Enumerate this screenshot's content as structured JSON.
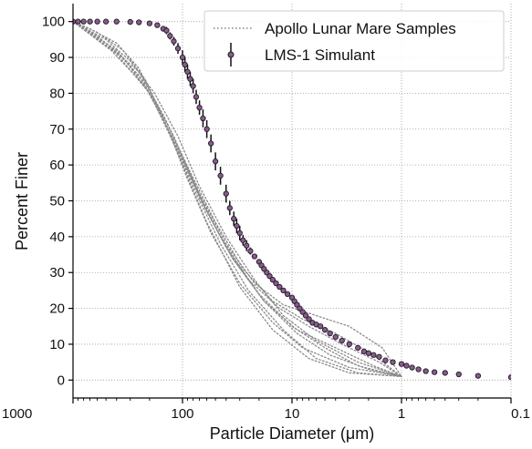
{
  "chart_data": {
    "type": "scatter",
    "xlabel": "Particle Diameter (μm)",
    "ylabel": "Percent Finer",
    "x_scale": "log",
    "x_reversed": true,
    "xlim": [
      1000,
      0.1
    ],
    "ylim": [
      -5,
      105
    ],
    "x_ticks": [
      1000,
      100,
      10,
      1,
      0.1
    ],
    "x_tick_labels": [
      "1000",
      "100",
      "10",
      "1",
      "0.1"
    ],
    "y_ticks": [
      0,
      10,
      20,
      30,
      40,
      50,
      60,
      70,
      80,
      90,
      100
    ],
    "y_tick_labels": [
      "0",
      "10",
      "20",
      "30",
      "40",
      "50",
      "60",
      "70",
      "80",
      "90",
      "100"
    ],
    "grid": true,
    "legend_position": "top-right",
    "legend": [
      {
        "label": "Apollo Lunar Mare Samples",
        "style": "dotted-line"
      },
      {
        "label": "LMS-1 Simulant",
        "style": "errorbar-marker"
      }
    ],
    "colors": {
      "apollo": "#8a8a8a",
      "simulant_fill": "#8b5a86",
      "simulant_edge": "#1b1b2b",
      "errorbar": "#111111",
      "grid": "#9a9a9a"
    },
    "series": [
      {
        "name": "LMS-1 Simulant",
        "kind": "points_with_errorbars",
        "points": [
          {
            "x": 1000,
            "y": 100
          },
          {
            "x": 900,
            "y": 100
          },
          {
            "x": 800,
            "y": 100
          },
          {
            "x": 700,
            "y": 100
          },
          {
            "x": 600,
            "y": 100
          },
          {
            "x": 500,
            "y": 100
          },
          {
            "x": 400,
            "y": 100
          },
          {
            "x": 300,
            "y": 99.9
          },
          {
            "x": 250,
            "y": 99.8
          },
          {
            "x": 200,
            "y": 99.5
          },
          {
            "x": 170,
            "y": 99
          },
          {
            "x": 150,
            "y": 98
          },
          {
            "x": 140,
            "y": 97.5,
            "err": 1
          },
          {
            "x": 130,
            "y": 96,
            "err": 1
          },
          {
            "x": 120,
            "y": 94.5,
            "err": 1.2
          },
          {
            "x": 110,
            "y": 92.5,
            "err": 1.5
          },
          {
            "x": 100,
            "y": 90,
            "err": 2
          },
          {
            "x": 95,
            "y": 88,
            "err": 2
          },
          {
            "x": 90,
            "y": 86,
            "err": 2
          },
          {
            "x": 85,
            "y": 84,
            "err": 2
          },
          {
            "x": 80,
            "y": 82,
            "err": 2
          },
          {
            "x": 75,
            "y": 79,
            "err": 2
          },
          {
            "x": 70,
            "y": 76,
            "err": 2
          },
          {
            "x": 65,
            "y": 73,
            "err": 2.5
          },
          {
            "x": 60,
            "y": 70,
            "err": 2.5
          },
          {
            "x": 55,
            "y": 66,
            "err": 2.5
          },
          {
            "x": 50,
            "y": 61,
            "err": 2.5
          },
          {
            "x": 45,
            "y": 57,
            "err": 2.5
          },
          {
            "x": 40,
            "y": 52,
            "err": 2.5
          },
          {
            "x": 37,
            "y": 48,
            "err": 2
          },
          {
            "x": 34,
            "y": 45,
            "err": 2
          },
          {
            "x": 32,
            "y": 43,
            "err": 2
          },
          {
            "x": 30,
            "y": 41,
            "err": 2
          },
          {
            "x": 28,
            "y": 39,
            "err": 1.5
          },
          {
            "x": 26,
            "y": 37.5,
            "err": 1.5
          },
          {
            "x": 24,
            "y": 36,
            "err": 1
          },
          {
            "x": 22,
            "y": 34.5
          },
          {
            "x": 20,
            "y": 33
          },
          {
            "x": 19,
            "y": 32
          },
          {
            "x": 18,
            "y": 31
          },
          {
            "x": 17,
            "y": 30
          },
          {
            "x": 16,
            "y": 29
          },
          {
            "x": 15,
            "y": 28
          },
          {
            "x": 14,
            "y": 27
          },
          {
            "x": 13,
            "y": 26
          },
          {
            "x": 12,
            "y": 25
          },
          {
            "x": 11,
            "y": 24
          },
          {
            "x": 10,
            "y": 23
          },
          {
            "x": 9.5,
            "y": 22
          },
          {
            "x": 9,
            "y": 21
          },
          {
            "x": 8.5,
            "y": 20
          },
          {
            "x": 8,
            "y": 19
          },
          {
            "x": 7.5,
            "y": 18
          },
          {
            "x": 7,
            "y": 17
          },
          {
            "x": 6.5,
            "y": 16
          },
          {
            "x": 6,
            "y": 15.5
          },
          {
            "x": 5.5,
            "y": 15
          },
          {
            "x": 5,
            "y": 14
          },
          {
            "x": 4.5,
            "y": 13
          },
          {
            "x": 4,
            "y": 12
          },
          {
            "x": 3.5,
            "y": 11
          },
          {
            "x": 3,
            "y": 10
          },
          {
            "x": 2.5,
            "y": 9
          },
          {
            "x": 2.2,
            "y": 8
          },
          {
            "x": 2,
            "y": 7.5
          },
          {
            "x": 1.8,
            "y": 7
          },
          {
            "x": 1.6,
            "y": 6.5
          },
          {
            "x": 1.4,
            "y": 5.5
          },
          {
            "x": 1.2,
            "y": 5
          },
          {
            "x": 1,
            "y": 4.5
          },
          {
            "x": 0.9,
            "y": 4
          },
          {
            "x": 0.8,
            "y": 3.5
          },
          {
            "x": 0.7,
            "y": 3
          },
          {
            "x": 0.6,
            "y": 2.5
          },
          {
            "x": 0.5,
            "y": 2.2
          },
          {
            "x": 0.4,
            "y": 2
          },
          {
            "x": 0.3,
            "y": 1.6
          },
          {
            "x": 0.2,
            "y": 1.2
          },
          {
            "x": 0.1,
            "y": 0.8
          }
        ]
      },
      {
        "name": "Apollo Lunar Mare Samples",
        "kind": "dotted_lines",
        "curves": [
          [
            [
              1000,
              100
            ],
            [
              700,
              98
            ],
            [
              400,
              94
            ],
            [
              250,
              87
            ],
            [
              160,
              75
            ],
            [
              100,
              60
            ],
            [
              60,
              44
            ],
            [
              30,
              26
            ],
            [
              15,
              14
            ],
            [
              7,
              6
            ],
            [
              3,
              2
            ],
            [
              1,
              1
            ]
          ],
          [
            [
              1000,
              100
            ],
            [
              600,
              97
            ],
            [
              350,
              92
            ],
            [
              220,
              84
            ],
            [
              140,
              71
            ],
            [
              90,
              56
            ],
            [
              55,
              41
            ],
            [
              30,
              27
            ],
            [
              15,
              16
            ],
            [
              8,
              9
            ],
            [
              3,
              3.5
            ],
            [
              1,
              1
            ]
          ],
          [
            [
              1000,
              100
            ],
            [
              600,
              96
            ],
            [
              350,
              90
            ],
            [
              200,
              80
            ],
            [
              120,
              66
            ],
            [
              75,
              52
            ],
            [
              45,
              38
            ],
            [
              25,
              25
            ],
            [
              12,
              14
            ],
            [
              6,
              6
            ],
            [
              2.5,
              2
            ],
            [
              1,
              1
            ]
          ],
          [
            [
              1000,
              100
            ],
            [
              500,
              95
            ],
            [
              300,
              89
            ],
            [
              180,
              80
            ],
            [
              110,
              68
            ],
            [
              70,
              54
            ],
            [
              40,
              40
            ],
            [
              22,
              28
            ],
            [
              12,
              18
            ],
            [
              6,
              11
            ],
            [
              2.5,
              5
            ],
            [
              1,
              1
            ]
          ],
          [
            [
              1000,
              100
            ],
            [
              500,
              94
            ],
            [
              250,
              86
            ],
            [
              150,
              74
            ],
            [
              95,
              61
            ],
            [
              60,
              47
            ],
            [
              35,
              34
            ],
            [
              18,
              22
            ],
            [
              9,
              14
            ],
            [
              4,
              9
            ],
            [
              1.8,
              4
            ],
            [
              1,
              1
            ]
          ],
          [
            [
              1000,
              100
            ],
            [
              450,
              93
            ],
            [
              250,
              85
            ],
            [
              140,
              72
            ],
            [
              85,
              58
            ],
            [
              50,
              44
            ],
            [
              28,
              31
            ],
            [
              15,
              22
            ],
            [
              8,
              17
            ],
            [
              4,
              13
            ],
            [
              1.8,
              7
            ],
            [
              1,
              1
            ]
          ],
          [
            [
              1000,
              100
            ],
            [
              450,
              92
            ],
            [
              220,
              82
            ],
            [
              130,
              69
            ],
            [
              80,
              55
            ],
            [
              45,
              40
            ],
            [
              25,
              28
            ],
            [
              13,
              20
            ],
            [
              7,
              15
            ],
            [
              3.5,
              10
            ],
            [
              1.6,
              5
            ],
            [
              1,
              1
            ]
          ],
          [
            [
              1000,
              100
            ],
            [
              400,
              91
            ],
            [
              200,
              80
            ],
            [
              120,
              67
            ],
            [
              70,
              52
            ],
            [
              40,
              38
            ],
            [
              22,
              27
            ],
            [
              12,
              21
            ],
            [
              6,
              18
            ],
            [
              3,
              15
            ],
            [
              1.5,
              9
            ],
            [
              1,
              1
            ]
          ],
          [
            [
              1000,
              100
            ],
            [
              400,
              92
            ],
            [
              210,
              82
            ],
            [
              120,
              68
            ],
            [
              70,
              51
            ],
            [
              40,
              37
            ],
            [
              20,
              24
            ],
            [
              10,
              15
            ],
            [
              5,
              9
            ],
            [
              2.5,
              4
            ],
            [
              1,
              1
            ]
          ],
          [
            [
              1000,
              100
            ],
            [
              350,
              90
            ],
            [
              190,
              79
            ],
            [
              110,
              64
            ],
            [
              65,
              49
            ],
            [
              35,
              34
            ],
            [
              18,
              22
            ],
            [
              9,
              13
            ],
            [
              4.5,
              7
            ],
            [
              2,
              3
            ],
            [
              1,
              1
            ]
          ]
        ]
      }
    ]
  }
}
